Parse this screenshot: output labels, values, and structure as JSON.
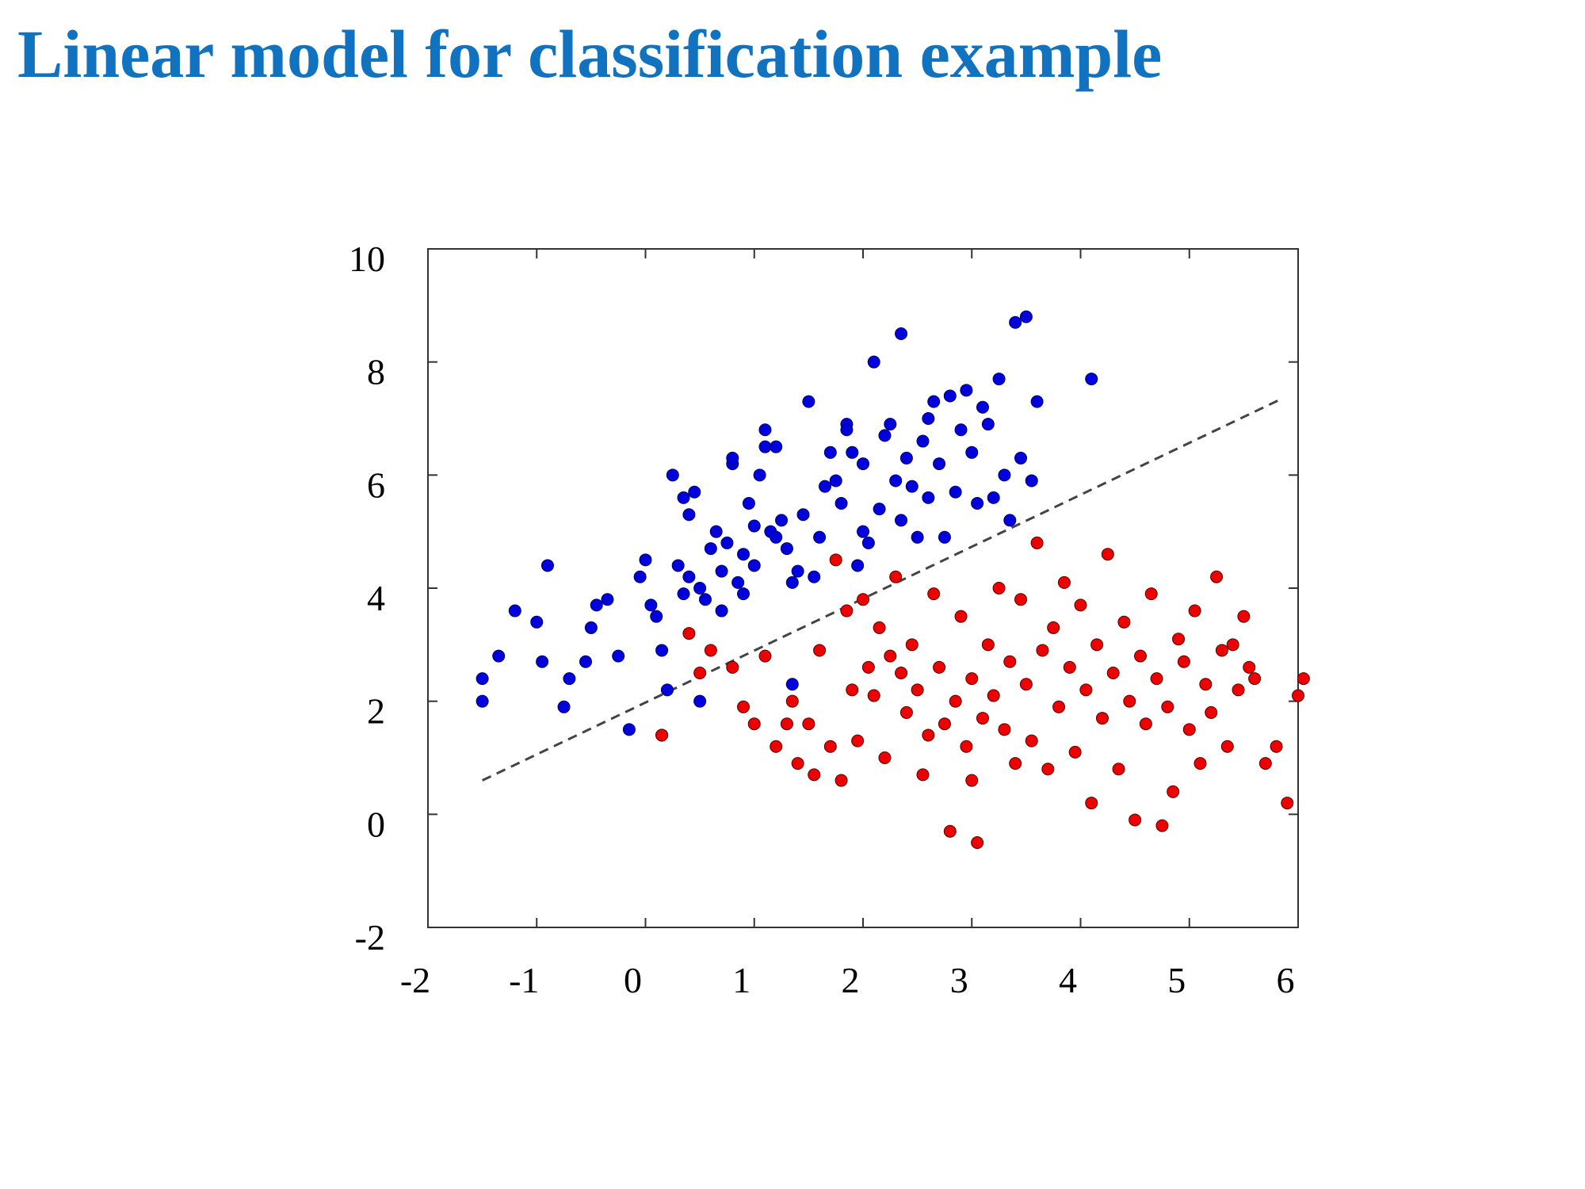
{
  "slide": {
    "title": "Linear model for classification example"
  },
  "colors": {
    "title": "#1172c0",
    "class_blue": "#0000dd",
    "class_red": "#ee0000",
    "boundary": "#444444"
  },
  "chart_data": {
    "type": "scatter",
    "title": "",
    "xlabel": "",
    "ylabel": "",
    "xlim": [
      -2,
      6
    ],
    "ylim": [
      -2,
      10
    ],
    "x_ticks": [
      -2,
      -1,
      0,
      1,
      2,
      3,
      4,
      5,
      6
    ],
    "y_ticks": [
      -2,
      0,
      2,
      4,
      6,
      8,
      10
    ],
    "grid": false,
    "series": [
      {
        "color": "#0000dd",
        "points": [
          [
            -1.5,
            2.4
          ],
          [
            -1.5,
            2.0
          ],
          [
            -1.35,
            2.8
          ],
          [
            -1.2,
            3.6
          ],
          [
            -1.0,
            3.4
          ],
          [
            -0.95,
            2.7
          ],
          [
            -0.9,
            4.4
          ],
          [
            -0.75,
            1.9
          ],
          [
            -0.7,
            2.4
          ],
          [
            -0.55,
            2.7
          ],
          [
            -0.5,
            3.3
          ],
          [
            -0.45,
            3.7
          ],
          [
            -0.35,
            3.8
          ],
          [
            -0.25,
            2.8
          ],
          [
            -0.15,
            1.5
          ],
          [
            -0.05,
            4.2
          ],
          [
            0.0,
            4.5
          ],
          [
            0.05,
            3.7
          ],
          [
            0.1,
            3.5
          ],
          [
            0.15,
            2.9
          ],
          [
            0.15,
            1.4
          ],
          [
            0.2,
            2.2
          ],
          [
            0.25,
            6.0
          ],
          [
            0.3,
            4.4
          ],
          [
            0.35,
            3.9
          ],
          [
            0.35,
            5.6
          ],
          [
            0.4,
            4.2
          ],
          [
            0.4,
            5.3
          ],
          [
            0.45,
            5.7
          ],
          [
            0.5,
            4.0
          ],
          [
            0.5,
            2.0
          ],
          [
            0.55,
            3.8
          ],
          [
            0.6,
            4.7
          ],
          [
            0.65,
            5.0
          ],
          [
            0.7,
            4.3
          ],
          [
            0.7,
            3.6
          ],
          [
            0.75,
            4.8
          ],
          [
            0.8,
            6.2
          ],
          [
            0.8,
            6.3
          ],
          [
            0.85,
            4.1
          ],
          [
            0.9,
            4.6
          ],
          [
            0.9,
            3.9
          ],
          [
            0.95,
            5.5
          ],
          [
            1.0,
            5.1
          ],
          [
            1.0,
            4.4
          ],
          [
            1.05,
            6.0
          ],
          [
            1.1,
            6.5
          ],
          [
            1.1,
            6.8
          ],
          [
            1.15,
            5.0
          ],
          [
            1.2,
            4.9
          ],
          [
            1.2,
            6.5
          ],
          [
            1.25,
            5.2
          ],
          [
            1.3,
            4.7
          ],
          [
            1.35,
            4.1
          ],
          [
            1.35,
            2.3
          ],
          [
            1.4,
            4.3
          ],
          [
            1.45,
            5.3
          ],
          [
            1.5,
            7.3
          ],
          [
            1.55,
            4.2
          ],
          [
            1.6,
            4.9
          ],
          [
            1.65,
            5.8
          ],
          [
            1.7,
            6.4
          ],
          [
            1.75,
            5.9
          ],
          [
            1.8,
            5.5
          ],
          [
            1.85,
            6.9
          ],
          [
            1.85,
            6.8
          ],
          [
            1.9,
            6.4
          ],
          [
            1.95,
            4.4
          ],
          [
            2.0,
            5.0
          ],
          [
            2.0,
            6.2
          ],
          [
            2.05,
            4.8
          ],
          [
            2.1,
            8.0
          ],
          [
            2.15,
            5.4
          ],
          [
            2.2,
            6.7
          ],
          [
            2.25,
            6.9
          ],
          [
            2.3,
            5.9
          ],
          [
            2.35,
            5.2
          ],
          [
            2.35,
            8.5
          ],
          [
            2.4,
            6.3
          ],
          [
            2.45,
            5.8
          ],
          [
            2.5,
            4.9
          ],
          [
            2.55,
            6.6
          ],
          [
            2.6,
            7.0
          ],
          [
            2.6,
            5.6
          ],
          [
            2.65,
            7.3
          ],
          [
            2.7,
            6.2
          ],
          [
            2.75,
            4.9
          ],
          [
            2.8,
            7.4
          ],
          [
            2.85,
            5.7
          ],
          [
            2.9,
            6.8
          ],
          [
            2.95,
            7.5
          ],
          [
            3.0,
            6.4
          ],
          [
            3.05,
            5.5
          ],
          [
            3.1,
            7.2
          ],
          [
            3.15,
            6.9
          ],
          [
            3.2,
            5.6
          ],
          [
            3.25,
            7.7
          ],
          [
            3.3,
            6.0
          ],
          [
            3.35,
            5.2
          ],
          [
            3.4,
            8.7
          ],
          [
            3.45,
            6.3
          ],
          [
            3.5,
            8.8
          ],
          [
            3.55,
            5.9
          ],
          [
            3.6,
            7.3
          ],
          [
            4.1,
            7.7
          ]
        ]
      },
      {
        "color": "#ee0000",
        "points": [
          [
            0.15,
            1.4
          ],
          [
            0.4,
            3.2
          ],
          [
            0.5,
            2.5
          ],
          [
            0.6,
            2.9
          ],
          [
            0.8,
            2.6
          ],
          [
            0.9,
            1.9
          ],
          [
            1.0,
            1.6
          ],
          [
            1.1,
            2.8
          ],
          [
            1.2,
            1.2
          ],
          [
            1.3,
            1.6
          ],
          [
            1.35,
            2.0
          ],
          [
            1.4,
            0.9
          ],
          [
            1.5,
            1.6
          ],
          [
            1.55,
            0.7
          ],
          [
            1.6,
            2.9
          ],
          [
            1.7,
            1.2
          ],
          [
            1.75,
            4.5
          ],
          [
            1.8,
            0.6
          ],
          [
            1.85,
            3.6
          ],
          [
            1.9,
            2.2
          ],
          [
            1.95,
            1.3
          ],
          [
            2.0,
            3.8
          ],
          [
            2.05,
            2.6
          ],
          [
            2.1,
            2.1
          ],
          [
            2.15,
            3.3
          ],
          [
            2.2,
            1.0
          ],
          [
            2.25,
            2.8
          ],
          [
            2.3,
            4.2
          ],
          [
            2.35,
            2.5
          ],
          [
            2.4,
            1.8
          ],
          [
            2.45,
            3.0
          ],
          [
            2.5,
            2.2
          ],
          [
            2.55,
            0.7
          ],
          [
            2.6,
            1.4
          ],
          [
            2.65,
            3.9
          ],
          [
            2.7,
            2.6
          ],
          [
            2.75,
            1.6
          ],
          [
            2.8,
            -0.3
          ],
          [
            2.85,
            2.0
          ],
          [
            2.9,
            3.5
          ],
          [
            2.95,
            1.2
          ],
          [
            3.0,
            0.6
          ],
          [
            3.0,
            2.4
          ],
          [
            3.05,
            -0.5
          ],
          [
            3.1,
            1.7
          ],
          [
            3.15,
            3.0
          ],
          [
            3.2,
            2.1
          ],
          [
            3.25,
            4.0
          ],
          [
            3.3,
            1.5
          ],
          [
            3.35,
            2.7
          ],
          [
            3.4,
            0.9
          ],
          [
            3.45,
            3.8
          ],
          [
            3.5,
            2.3
          ],
          [
            3.55,
            1.3
          ],
          [
            3.6,
            4.8
          ],
          [
            3.65,
            2.9
          ],
          [
            3.7,
            0.8
          ],
          [
            3.75,
            3.3
          ],
          [
            3.8,
            1.9
          ],
          [
            3.85,
            4.1
          ],
          [
            3.9,
            2.6
          ],
          [
            3.95,
            1.1
          ],
          [
            4.0,
            3.7
          ],
          [
            4.05,
            2.2
          ],
          [
            4.1,
            0.2
          ],
          [
            4.15,
            3.0
          ],
          [
            4.2,
            1.7
          ],
          [
            4.25,
            4.6
          ],
          [
            4.3,
            2.5
          ],
          [
            4.35,
            0.8
          ],
          [
            4.4,
            3.4
          ],
          [
            4.45,
            2.0
          ],
          [
            4.5,
            -0.1
          ],
          [
            4.55,
            2.8
          ],
          [
            4.6,
            1.6
          ],
          [
            4.65,
            3.9
          ],
          [
            4.7,
            2.4
          ],
          [
            4.75,
            -0.2
          ],
          [
            4.8,
            1.9
          ],
          [
            4.85,
            0.4
          ],
          [
            4.9,
            3.1
          ],
          [
            4.95,
            2.7
          ],
          [
            5.0,
            1.5
          ],
          [
            5.05,
            3.6
          ],
          [
            5.1,
            0.9
          ],
          [
            5.15,
            2.3
          ],
          [
            5.2,
            1.8
          ],
          [
            5.25,
            4.2
          ],
          [
            5.3,
            2.9
          ],
          [
            5.35,
            1.2
          ],
          [
            5.4,
            3.0
          ],
          [
            5.45,
            2.2
          ],
          [
            5.5,
            3.5
          ],
          [
            5.55,
            2.6
          ],
          [
            5.6,
            2.4
          ],
          [
            5.7,
            0.9
          ],
          [
            5.8,
            1.2
          ],
          [
            5.9,
            0.2
          ],
          [
            6.0,
            2.1
          ],
          [
            6.05,
            2.4
          ]
        ]
      }
    ],
    "decision_boundary": {
      "style": "dashed",
      "x": [
        -1.5,
        5.85
      ],
      "y": [
        0.6,
        7.35
      ]
    }
  }
}
